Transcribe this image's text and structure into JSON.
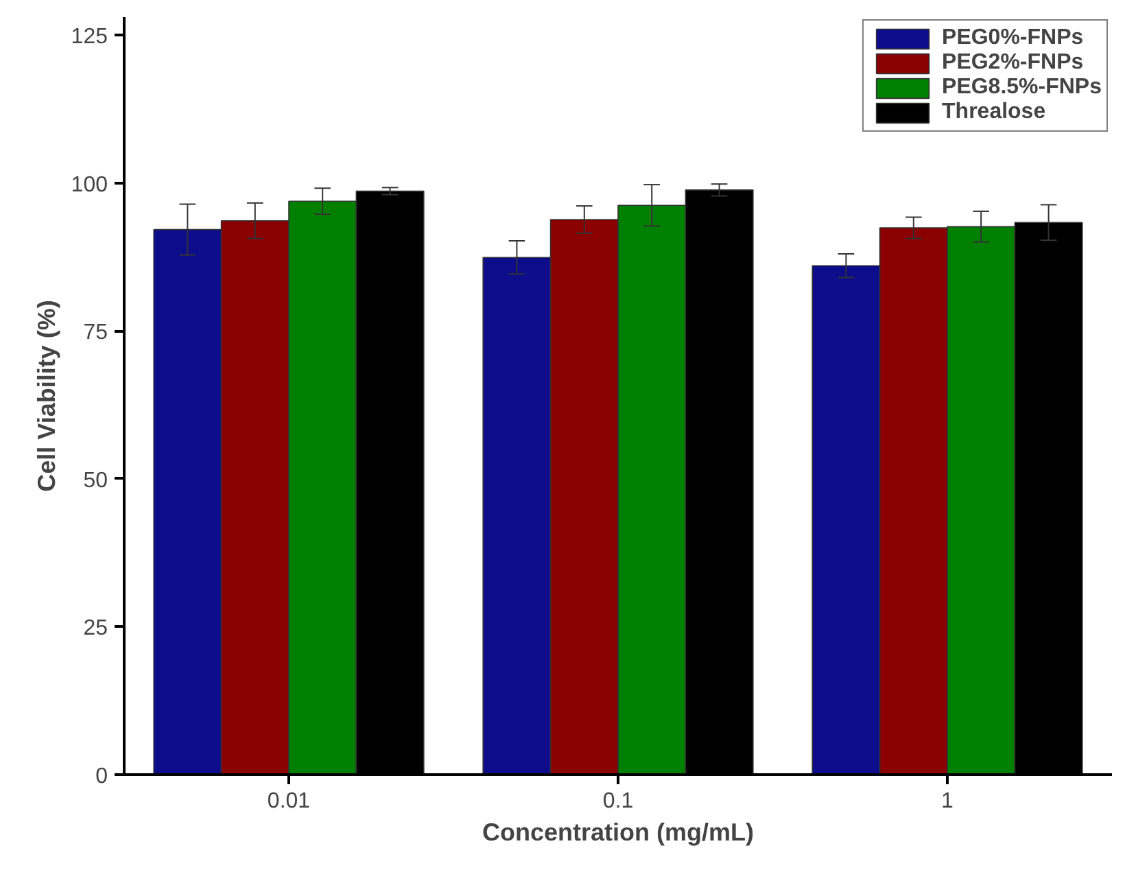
{
  "chart_data": {
    "type": "bar",
    "xlabel": "Concentration (mg/mL)",
    "ylabel": "Cell Viability (%)",
    "categories": [
      "0.01",
      "0.1",
      "1"
    ],
    "series": [
      {
        "name": "PEG0%-FNPs",
        "color": "#0d0d8c",
        "values": [
          92.1,
          87.4,
          86.0
        ],
        "errors": [
          4.3,
          2.8,
          2.0
        ]
      },
      {
        "name": "PEG2%-FNPs",
        "color": "#8b0000",
        "values": [
          93.6,
          93.8,
          92.4
        ],
        "errors": [
          3.0,
          2.3,
          1.8
        ]
      },
      {
        "name": "PEG8.5%-FNPs",
        "color": "#008000",
        "values": [
          96.9,
          96.2,
          92.6
        ],
        "errors": [
          2.2,
          3.5,
          2.6
        ]
      },
      {
        "name": "Threalose",
        "color": "#000000",
        "values": [
          98.6,
          98.8,
          93.3
        ],
        "errors": [
          0.6,
          1.0,
          3.0
        ]
      }
    ],
    "ylim": [
      0,
      128
    ],
    "yticks": [
      0,
      25,
      50,
      75,
      100,
      125
    ],
    "grid": false,
    "legend": "top right"
  }
}
